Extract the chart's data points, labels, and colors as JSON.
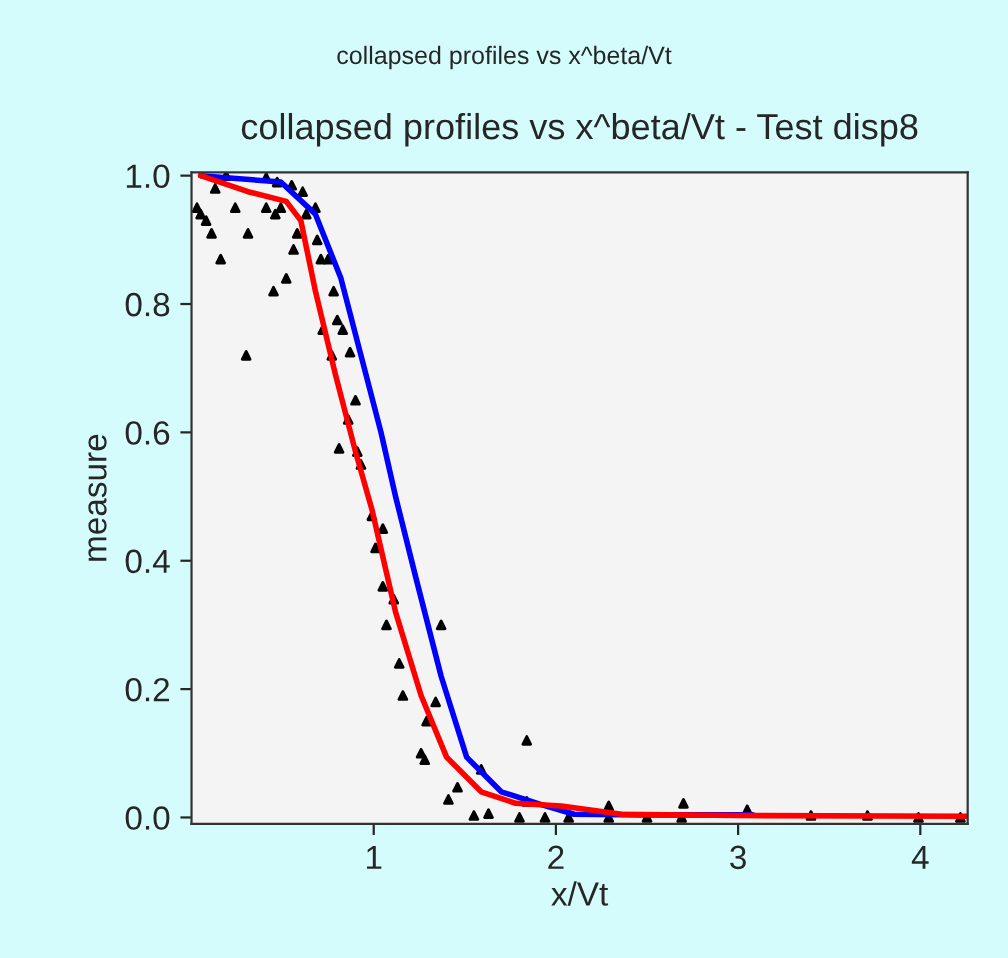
{
  "chart_data": {
    "type": "line",
    "title": "collapsed profiles vs x^beta/Vt - Test disp8",
    "xlabel": "x/Vt",
    "ylabel": "measure",
    "annotations": [
      "collapsed profiles vs x^beta/Vt"
    ],
    "xlim": [
      0,
      4.26
    ],
    "ylim": [
      -0.01,
      1.005
    ],
    "xticks": [
      1,
      2,
      3,
      4
    ],
    "yticks": [
      {
        "value": 0,
        "label": "0.0"
      },
      {
        "value": 0.2,
        "label": "0.2"
      },
      {
        "value": 0.4,
        "label": "0.4"
      },
      {
        "value": 0.6,
        "label": "0.6"
      },
      {
        "value": 0.8,
        "label": "0.8"
      },
      {
        "value": 1,
        "label": "1.0"
      }
    ],
    "grid": false,
    "legend": false,
    "series": [
      {
        "type": "scatter",
        "color": "#000000",
        "marker": "triangle",
        "x": [
          0.19,
          0.41,
          0.47,
          0.55,
          0.61,
          0.03,
          0.05,
          0.08,
          0.11,
          0.13,
          0.24,
          0.16,
          0.31,
          0.41,
          0.46,
          0.49,
          0.3,
          0.45,
          0.52,
          0.56,
          0.58,
          0.63,
          0.68,
          0.69,
          0.71,
          0.75,
          0.78,
          0.8,
          0.72,
          0.83,
          0.87,
          0.77,
          0.9,
          0.86,
          0.81,
          0.91,
          0.93,
          0.99,
          1.05,
          1.01,
          1.05,
          1.11,
          1.07,
          1.37,
          1.14,
          1.16,
          1.34,
          1.29,
          1.26,
          1.28,
          1.59,
          1.84,
          1.46,
          1.41,
          1.55,
          1.63,
          1.8,
          1.84,
          1.94,
          2.07,
          2.29,
          2.29,
          2.5,
          2.69,
          2.7,
          3.05,
          3.4,
          3.71,
          3.99,
          4.22
        ],
        "values": [
          1.0,
          0.997,
          0.99,
          0.985,
          0.975,
          0.95,
          0.94,
          0.93,
          0.91,
          0.98,
          0.95,
          0.87,
          0.91,
          0.95,
          0.94,
          0.95,
          0.72,
          0.82,
          0.84,
          0.885,
          0.91,
          0.94,
          0.95,
          0.9,
          0.87,
          0.87,
          0.82,
          0.775,
          0.76,
          0.76,
          0.725,
          0.72,
          0.65,
          0.62,
          0.575,
          0.57,
          0.55,
          0.47,
          0.45,
          0.42,
          0.36,
          0.34,
          0.3,
          0.3,
          0.24,
          0.19,
          0.18,
          0.15,
          0.1,
          0.09,
          0.075,
          0.12,
          0.047,
          0.028,
          0.003,
          0.006,
          0.0,
          0.025,
          0.0,
          0.0,
          0.018,
          0.0,
          0.0,
          0.0,
          0.022,
          0.012,
          0.003,
          0.003,
          0.0,
          0.0
        ]
      },
      {
        "color": "#0000ff",
        "line_style": "solid",
        "x": [
          0.05,
          0.49,
          0.68,
          0.82,
          0.93,
          1.04,
          1.12,
          1.23,
          1.37,
          1.51,
          1.7,
          1.92,
          2.1,
          2.5,
          3.08
        ],
        "values": [
          1.0,
          0.99,
          0.94,
          0.84,
          0.72,
          0.6,
          0.5,
          0.375,
          0.22,
          0.094,
          0.04,
          0.02,
          0.005,
          0.004,
          0.004
        ]
      },
      {
        "color": "#ff0000",
        "line_style": "solid",
        "x": [
          0.05,
          0.31,
          0.52,
          0.6,
          0.68,
          0.79,
          0.9,
          0.99,
          1.12,
          1.26,
          1.4,
          1.59,
          1.78,
          2.03,
          2.36,
          3.0,
          4.26
        ],
        "values": [
          1.0,
          0.975,
          0.96,
          0.93,
          0.82,
          0.69,
          0.57,
          0.48,
          0.32,
          0.19,
          0.094,
          0.04,
          0.022,
          0.018,
          0.005,
          0.003,
          0.002
        ]
      }
    ]
  }
}
